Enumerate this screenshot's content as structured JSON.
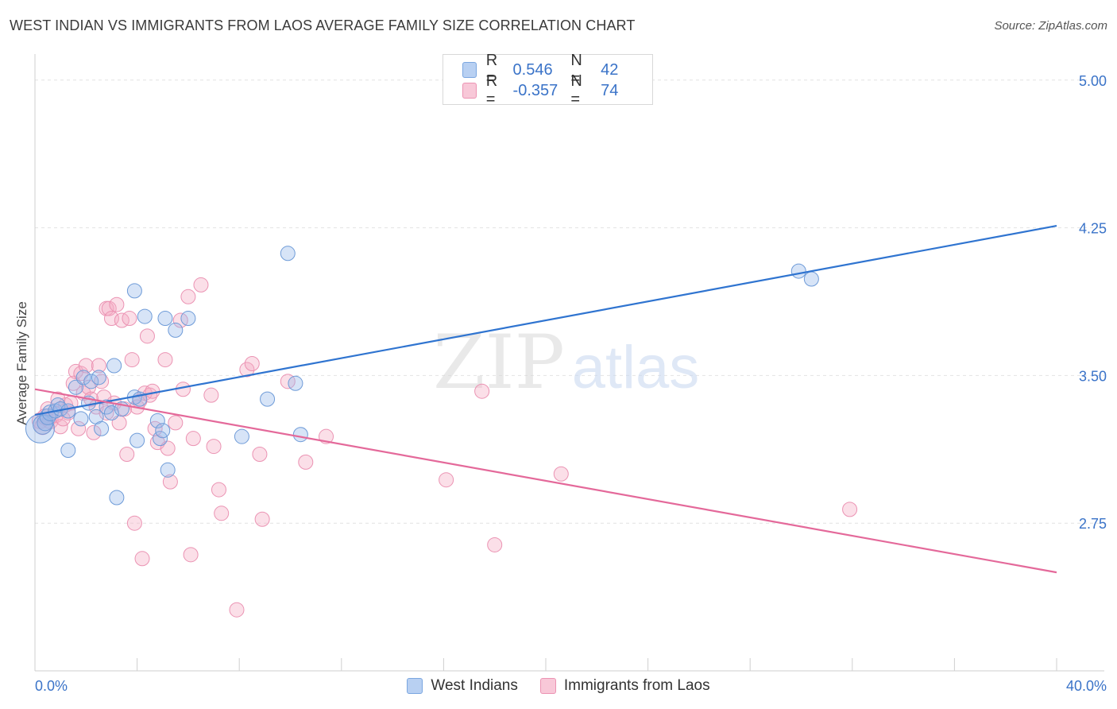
{
  "title": "WEST INDIAN VS IMMIGRANTS FROM LAOS AVERAGE FAMILY SIZE CORRELATION CHART",
  "source": "Source: ZipAtlas.com",
  "watermark": {
    "zip": "ZIP",
    "atlas": "atlas"
  },
  "legend": {
    "r_label": "R =",
    "n_label": "N =",
    "rows": [
      {
        "r": "0.546",
        "n": "42",
        "fill": "#b8d0f2",
        "stroke": "#7aa6e0"
      },
      {
        "r": "-0.357",
        "n": "74",
        "fill": "#f8c8d8",
        "stroke": "#ec93b3"
      }
    ]
  },
  "colors": {
    "blue_fill": "rgba(150,185,235,0.38)",
    "blue_stroke": "#6e9bd8",
    "blue_line": "#2f74d0",
    "pink_fill": "rgba(245,170,195,0.38)",
    "pink_stroke": "#eb93b3",
    "pink_line": "#e4699a",
    "tick_label": "#3a73c8",
    "grid": "#e2e2e2"
  },
  "chart_data": {
    "type": "scatter",
    "title": "WEST INDIAN VS IMMIGRANTS FROM LAOS AVERAGE FAMILY SIZE CORRELATION CHART",
    "xlabel": "",
    "ylabel": "Average Family Size",
    "xlim": [
      0,
      40
    ],
    "ylim": [
      2.0,
      5.1
    ],
    "x_tick_labels": [
      "0.0%",
      "40.0%"
    ],
    "y_ticks": [
      2.75,
      3.5,
      4.25,
      5.0
    ],
    "y_tick_labels": [
      "2.75",
      "3.50",
      "4.25",
      "5.00"
    ],
    "grid": true,
    "legend_position": "top-center",
    "series": [
      {
        "name": "West Indians",
        "r": 0.546,
        "n": 42,
        "trend": {
          "x": [
            0,
            40
          ],
          "y": [
            3.3,
            4.26
          ]
        },
        "points": [
          [
            0.2,
            3.23,
            18
          ],
          [
            0.3,
            3.25,
            12
          ],
          [
            0.4,
            3.26,
            10
          ],
          [
            0.5,
            3.29,
            10
          ],
          [
            0.6,
            3.31,
            10
          ],
          [
            0.8,
            3.32,
            9
          ],
          [
            0.9,
            3.35,
            9
          ],
          [
            1.0,
            3.33,
            9
          ],
          [
            1.3,
            3.32,
            9
          ],
          [
            1.6,
            3.44,
            9
          ],
          [
            1.8,
            3.28,
            9
          ],
          [
            1.9,
            3.49,
            9
          ],
          [
            2.1,
            3.36,
            9
          ],
          [
            2.2,
            3.47,
            9
          ],
          [
            2.4,
            3.29,
            9
          ],
          [
            2.5,
            3.49,
            9
          ],
          [
            2.6,
            3.23,
            9
          ],
          [
            2.8,
            3.34,
            9
          ],
          [
            3.0,
            3.31,
            9
          ],
          [
            3.1,
            3.55,
            9
          ],
          [
            3.2,
            2.88,
            9
          ],
          [
            3.4,
            3.33,
            9
          ],
          [
            3.9,
            3.39,
            9
          ],
          [
            4.1,
            3.38,
            9
          ],
          [
            4.3,
            3.8,
            9
          ],
          [
            3.9,
            3.93,
            9
          ],
          [
            4.0,
            3.17,
            9
          ],
          [
            1.3,
            3.12,
            9
          ],
          [
            4.8,
            3.27,
            9
          ],
          [
            4.9,
            3.18,
            9
          ],
          [
            5.0,
            3.22,
            9
          ],
          [
            5.2,
            3.02,
            9
          ],
          [
            5.5,
            3.73,
            9
          ],
          [
            5.1,
            3.79,
            9
          ],
          [
            6.0,
            3.79,
            9
          ],
          [
            8.1,
            3.19,
            9
          ],
          [
            9.1,
            3.38,
            9
          ],
          [
            9.9,
            4.12,
            9
          ],
          [
            10.2,
            3.46,
            9
          ],
          [
            10.4,
            3.2,
            9
          ],
          [
            29.9,
            4.03,
            9
          ],
          [
            30.4,
            3.99,
            9
          ]
        ]
      },
      {
        "name": "Immigrants from Laos",
        "r": -0.357,
        "n": 74,
        "trend": {
          "x": [
            0,
            40
          ],
          "y": [
            3.43,
            2.5
          ]
        },
        "points": [
          [
            0.2,
            3.27,
            10
          ],
          [
            0.3,
            3.24,
            10
          ],
          [
            0.4,
            3.29,
            10
          ],
          [
            0.6,
            3.27,
            10
          ],
          [
            0.8,
            3.3,
            10
          ],
          [
            0.9,
            3.38,
            9
          ],
          [
            1.0,
            3.24,
            9
          ],
          [
            1.2,
            3.35,
            9
          ],
          [
            1.3,
            3.31,
            9
          ],
          [
            1.4,
            3.36,
            9
          ],
          [
            1.5,
            3.46,
            9
          ],
          [
            1.6,
            3.52,
            9
          ],
          [
            1.7,
            3.23,
            9
          ],
          [
            1.8,
            3.51,
            9
          ],
          [
            1.9,
            3.41,
            9
          ],
          [
            2.0,
            3.55,
            9
          ],
          [
            2.1,
            3.44,
            9
          ],
          [
            2.2,
            3.38,
            9
          ],
          [
            2.3,
            3.21,
            9
          ],
          [
            2.4,
            3.34,
            9
          ],
          [
            2.5,
            3.55,
            9
          ],
          [
            2.6,
            3.47,
            9
          ],
          [
            2.7,
            3.39,
            9
          ],
          [
            2.8,
            3.84,
            9
          ],
          [
            2.9,
            3.84,
            9
          ],
          [
            3.0,
            3.79,
            9
          ],
          [
            3.1,
            3.36,
            9
          ],
          [
            3.2,
            3.86,
            9
          ],
          [
            3.3,
            3.26,
            9
          ],
          [
            3.4,
            3.78,
            9
          ],
          [
            3.5,
            3.33,
            9
          ],
          [
            3.6,
            3.1,
            9
          ],
          [
            3.7,
            3.79,
            9
          ],
          [
            3.8,
            3.58,
            9
          ],
          [
            3.9,
            2.75,
            9
          ],
          [
            4.0,
            3.34,
            9
          ],
          [
            4.1,
            3.37,
            9
          ],
          [
            4.2,
            2.57,
            9
          ],
          [
            4.3,
            3.41,
            9
          ],
          [
            4.4,
            3.7,
            9
          ],
          [
            4.5,
            3.4,
            9
          ],
          [
            4.6,
            3.42,
            9
          ],
          [
            4.7,
            3.23,
            9
          ],
          [
            4.8,
            3.16,
            9
          ],
          [
            5.1,
            3.58,
            9
          ],
          [
            5.2,
            3.13,
            9
          ],
          [
            5.3,
            2.96,
            9
          ],
          [
            5.7,
            3.78,
            9
          ],
          [
            5.8,
            3.43,
            9
          ],
          [
            6.0,
            3.9,
            9
          ],
          [
            6.1,
            2.59,
            9
          ],
          [
            6.2,
            3.18,
            9
          ],
          [
            6.5,
            3.96,
            9
          ],
          [
            6.9,
            3.4,
            9
          ],
          [
            7.2,
            2.92,
            9
          ],
          [
            7.3,
            2.8,
            9
          ],
          [
            7.0,
            3.14,
            9
          ],
          [
            7.9,
            2.31,
            9
          ],
          [
            8.3,
            3.53,
            9
          ],
          [
            8.5,
            3.56,
            9
          ],
          [
            8.8,
            3.1,
            9
          ],
          [
            8.9,
            2.77,
            9
          ],
          [
            9.9,
            3.47,
            9
          ],
          [
            10.6,
            3.06,
            9
          ],
          [
            11.4,
            3.19,
            9
          ],
          [
            16.1,
            2.97,
            9
          ],
          [
            17.5,
            3.42,
            9
          ],
          [
            18.0,
            2.64,
            9
          ],
          [
            20.6,
            3.0,
            9
          ],
          [
            31.9,
            2.82,
            9
          ],
          [
            0.5,
            3.33,
            9
          ],
          [
            1.1,
            3.28,
            9
          ],
          [
            2.8,
            3.31,
            9
          ],
          [
            5.5,
            3.26,
            9
          ]
        ]
      }
    ]
  }
}
